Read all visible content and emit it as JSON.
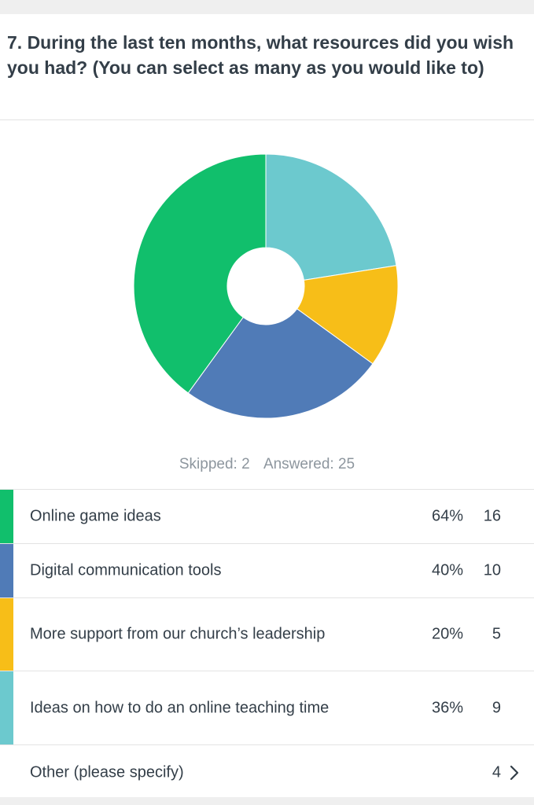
{
  "question": {
    "title": "7. During the last ten months, what resources did you wish you had? (You can select as many as you would like to)"
  },
  "summary": {
    "skipped": "Skipped: 2",
    "answered": "Answered: 25"
  },
  "chart_data": {
    "type": "pie",
    "donut": true,
    "legend": "none",
    "categories": [
      "Ideas on how to do an online teaching time",
      "More support from our church’s leadership",
      "Digital communication tools",
      "Online game ideas"
    ],
    "values": [
      9,
      5,
      10,
      16
    ],
    "colors": [
      "#6cc9ce",
      "#f7be18",
      "#507bb7",
      "#11bf6c"
    ]
  },
  "table": {
    "rows": [
      {
        "label": "Online game ideas",
        "percent": "64%",
        "count": "16",
        "color": "#11bf6c"
      },
      {
        "label": "Digital communication tools",
        "percent": "40%",
        "count": "10",
        "color": "#507bb7"
      },
      {
        "label": "More support from our church’s leadership",
        "percent": "20%",
        "count": "5",
        "color": "#f7be18"
      },
      {
        "label": "Ideas on how to do an online teaching time",
        "percent": "36%",
        "count": "9",
        "color": "#6cc9ce"
      }
    ],
    "other": {
      "label": "Other (please specify)",
      "count": "4",
      "icon": "chevron-right-icon"
    }
  }
}
